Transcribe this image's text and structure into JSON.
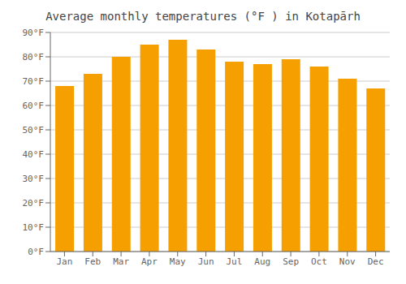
{
  "chart_data": {
    "type": "bar",
    "title": "Average monthly temperatures (°F ) in Kotapārh",
    "categories": [
      "Jan",
      "Feb",
      "Mar",
      "Apr",
      "May",
      "Jun",
      "Jul",
      "Aug",
      "Sep",
      "Oct",
      "Nov",
      "Dec"
    ],
    "values": [
      68,
      73,
      80,
      85,
      87,
      83,
      78,
      77,
      79,
      76,
      71,
      67
    ],
    "color": "#F5A000",
    "ylim": [
      0,
      90
    ],
    "yticks": [
      {
        "value": 0,
        "label": "0°F"
      },
      {
        "value": 10,
        "label": "10°F"
      },
      {
        "value": 20,
        "label": "20°F"
      },
      {
        "value": 30,
        "label": "30°F"
      },
      {
        "value": 40,
        "label": "40°F"
      },
      {
        "value": 50,
        "label": "50°F"
      },
      {
        "value": 60,
        "label": "60°F"
      },
      {
        "value": 70,
        "label": "70°F"
      },
      {
        "value": 80,
        "label": "80°F"
      },
      {
        "value": 90,
        "label": "90°F"
      }
    ],
    "grid": true
  }
}
